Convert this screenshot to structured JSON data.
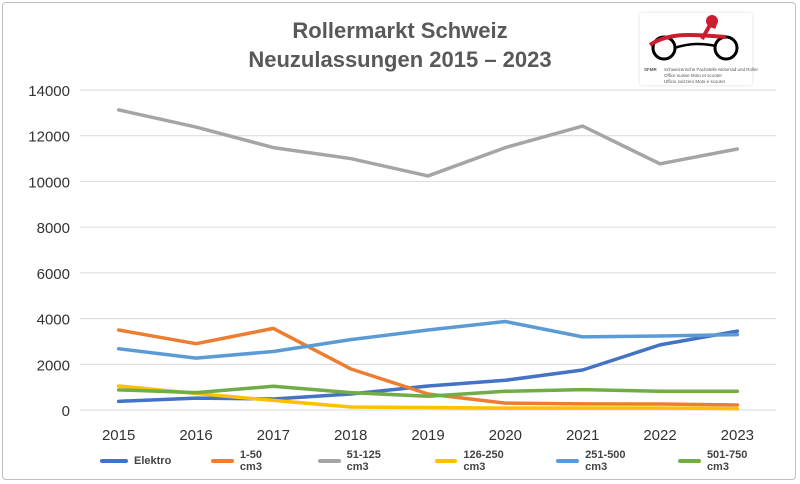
{
  "chart_data": {
    "type": "line",
    "title": "Rollermarkt Schweiz",
    "subtitle": "Neuzulassungen 2015 – 2023",
    "xlabel": "",
    "ylabel": "",
    "x": [
      2015,
      2016,
      2017,
      2018,
      2019,
      2020,
      2021,
      2022,
      2023
    ],
    "ylim": [
      0,
      14000
    ],
    "yticks": [
      0,
      2000,
      4000,
      6000,
      8000,
      10000,
      12000,
      14000
    ],
    "grid": true,
    "legend_position": "bottom",
    "series": [
      {
        "name": "Elektro",
        "color": "#4472C4",
        "values": [
          380,
          520,
          480,
          700,
          1050,
          1300,
          1750,
          2850,
          3450
        ]
      },
      {
        "name": "1-50 cm3",
        "color": "#ED7D31",
        "values": [
          3500,
          2900,
          3570,
          1800,
          700,
          300,
          270,
          260,
          220
        ]
      },
      {
        "name": "51-125 cm3",
        "color": "#A5A5A5",
        "values": [
          13130,
          12380,
          11480,
          11000,
          10240,
          11480,
          12420,
          10770,
          11420
        ]
      },
      {
        "name": "126-250 cm3",
        "color": "#FFC000",
        "values": [
          1050,
          720,
          420,
          130,
          110,
          80,
          90,
          90,
          60
        ]
      },
      {
        "name": "251-500 cm3",
        "color": "#5B9BD5",
        "values": [
          2680,
          2270,
          2560,
          3080,
          3500,
          3870,
          3200,
          3240,
          3300
        ]
      },
      {
        "name": "501-750 cm3",
        "color": "#70AD47",
        "values": [
          880,
          760,
          1040,
          760,
          600,
          820,
          890,
          820,
          820
        ]
      }
    ]
  },
  "logo": {
    "line1": "SFMR",
    "line2": "Schweizerische Fachstelle Motorrad und Roller",
    "line3": "Office suisse Moto et scooter",
    "line4": "Ufficio svizzero Moto e scooter"
  }
}
